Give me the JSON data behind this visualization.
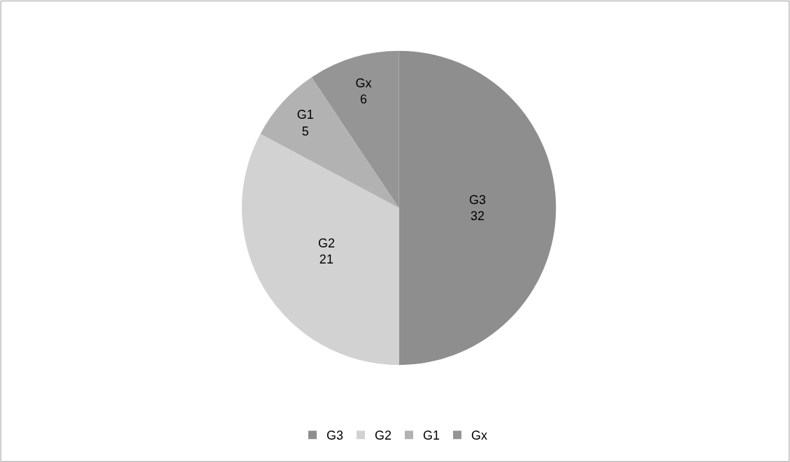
{
  "chart_data": {
    "type": "pie",
    "categories": [
      "G3",
      "G2",
      "G1",
      "Gx"
    ],
    "values": [
      32,
      21,
      5,
      6
    ],
    "colors": [
      "#8e8e8e",
      "#d2d2d2",
      "#b2b2b2",
      "#959595"
    ],
    "data_labels": true,
    "legend": "bottom"
  }
}
